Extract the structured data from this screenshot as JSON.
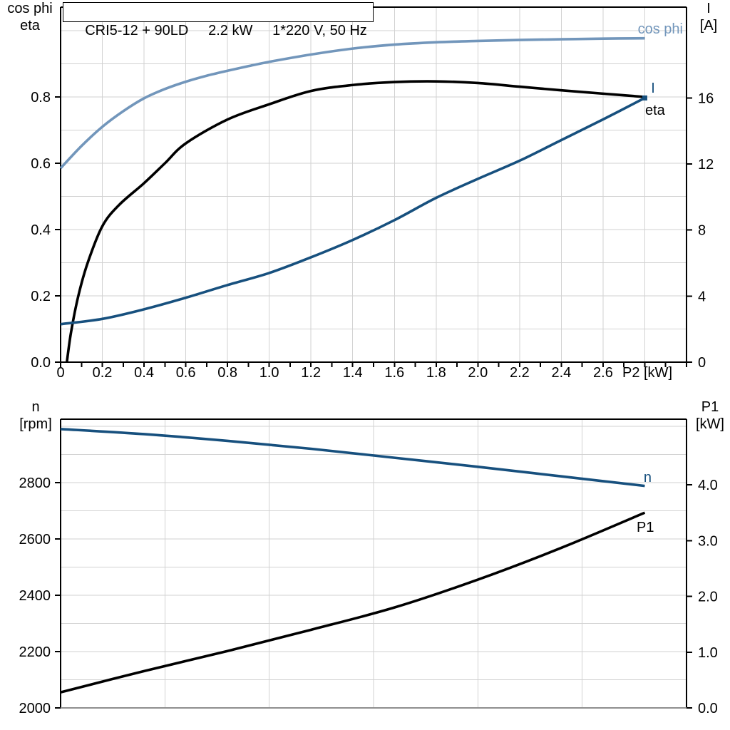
{
  "title": "CRI5-12 + 90LD     2.2 kW     1*220 V, 50 Hz",
  "colors": {
    "black": "#000000",
    "light_blue": "#7296bb",
    "dark_blue": "#17507e",
    "grid": "#d2d2d2",
    "bottom_frame_gray": "#8f8f8f",
    "background": "#ffffff"
  },
  "chart_data": [
    {
      "type": "line",
      "name": "motor-curves",
      "x_axis": {
        "title": "P2 [kW]",
        "min": 0,
        "max": 3.0,
        "minor_tick_step": 0.1,
        "tick_values": [
          0,
          0.2,
          0.4,
          0.6,
          0.8,
          1.0,
          1.2,
          1.4,
          1.6,
          1.8,
          2.0,
          2.2,
          2.4,
          2.6
        ],
        "tick_labels": [
          "0",
          "0.2",
          "0.4",
          "0.6",
          "0.8",
          "1.0",
          "1.2",
          "1.4",
          "1.6",
          "1.8",
          "2.0",
          "2.2",
          "2.4",
          "2.6"
        ],
        "grid_values": [
          0.2,
          0.4,
          0.6,
          0.8,
          1.0,
          1.2,
          1.4,
          1.6,
          1.8,
          2.0,
          2.2,
          2.4,
          2.6,
          2.8
        ]
      },
      "left_axis": {
        "title_lines": [
          "cos phi",
          "eta"
        ],
        "min": 0,
        "max": 1.071,
        "tick_values": [
          0,
          0.2,
          0.4,
          0.6,
          0.8
        ],
        "tick_labels": [
          "0.0",
          "0.2",
          "0.4",
          "0.6",
          "0.8"
        ],
        "grid_values": [
          0.1,
          0.2,
          0.3,
          0.4,
          0.5,
          0.6,
          0.7,
          0.8,
          0.9,
          1.0
        ]
      },
      "right_axis": {
        "title_lines": [
          "I",
          "[A]"
        ],
        "min": 0,
        "max": 21.5,
        "tick_values": [
          0,
          4,
          8,
          12,
          16
        ],
        "tick_labels": [
          "0",
          "4",
          "8",
          "12",
          "16"
        ]
      },
      "series": [
        {
          "name": "cos phi",
          "axis": "left",
          "color_key": "light_blue",
          "points": [
            [
              0,
              0.585
            ],
            [
              0.1,
              0.652
            ],
            [
              0.2,
              0.71
            ],
            [
              0.3,
              0.757
            ],
            [
              0.4,
              0.796
            ],
            [
              0.5,
              0.824
            ],
            [
              0.6,
              0.846
            ],
            [
              0.7,
              0.864
            ],
            [
              0.8,
              0.879
            ],
            [
              0.9,
              0.893
            ],
            [
              1.0,
              0.906
            ],
            [
              1.2,
              0.928
            ],
            [
              1.4,
              0.946
            ],
            [
              1.6,
              0.958
            ],
            [
              1.8,
              0.965
            ],
            [
              2.0,
              0.969
            ],
            [
              2.2,
              0.972
            ],
            [
              2.4,
              0.974
            ],
            [
              2.6,
              0.976
            ],
            [
              2.8,
              0.977
            ]
          ]
        },
        {
          "name": "eta",
          "axis": "left",
          "color_key": "black",
          "points": [
            [
              0.03,
              0
            ],
            [
              0.05,
              0.09
            ],
            [
              0.085,
              0.2
            ],
            [
              0.13,
              0.3
            ],
            [
              0.2,
              0.41
            ],
            [
              0.28,
              0.474
            ],
            [
              0.4,
              0.54
            ],
            [
              0.5,
              0.6
            ],
            [
              0.6,
              0.66
            ],
            [
              0.8,
              0.732
            ],
            [
              1.0,
              0.778
            ],
            [
              1.2,
              0.818
            ],
            [
              1.4,
              0.836
            ],
            [
              1.6,
              0.845
            ],
            [
              1.8,
              0.847
            ],
            [
              2.0,
              0.842
            ],
            [
              2.2,
              0.831
            ],
            [
              2.4,
              0.82
            ],
            [
              2.6,
              0.81
            ],
            [
              2.8,
              0.8
            ]
          ]
        },
        {
          "name": "I",
          "axis": "right",
          "color_key": "dark_blue",
          "end_marker": true,
          "points": [
            [
              0,
              2.3
            ],
            [
              0.2,
              2.62
            ],
            [
              0.4,
              3.2
            ],
            [
              0.6,
              3.9
            ],
            [
              0.8,
              4.67
            ],
            [
              1.0,
              5.4
            ],
            [
              1.2,
              6.35
            ],
            [
              1.4,
              7.4
            ],
            [
              1.6,
              8.6
            ],
            [
              1.8,
              9.95
            ],
            [
              2.0,
              11.1
            ],
            [
              2.2,
              12.2
            ],
            [
              2.4,
              13.45
            ],
            [
              2.6,
              14.7
            ],
            [
              2.8,
              16.0
            ]
          ]
        }
      ]
    },
    {
      "type": "line",
      "name": "speed-power-curves",
      "x_axis": {
        "title": "",
        "min": 0,
        "max": 3.0,
        "tick_values": [],
        "tick_labels": [],
        "grid_values": [
          0.5,
          1.0,
          1.5,
          2.0,
          2.5
        ]
      },
      "left_axis": {
        "title_lines": [
          "n",
          "[rpm]"
        ],
        "min": 2000,
        "max": 3025,
        "tick_values": [
          2000,
          2200,
          2400,
          2600,
          2800
        ],
        "tick_labels": [
          "2000",
          "2200",
          "2400",
          "2600",
          "2800"
        ],
        "grid_values": [
          2100,
          2200,
          2300,
          2400,
          2500,
          2600,
          2700,
          2800,
          2900,
          3000
        ]
      },
      "right_axis": {
        "title_lines": [
          "P1",
          "[kW]"
        ],
        "min": 0,
        "max": 5.176,
        "tick_values": [
          0,
          1,
          2,
          3,
          4
        ],
        "tick_labels": [
          "0.0",
          "1.0",
          "2.0",
          "3.0",
          "4.0"
        ]
      },
      "series": [
        {
          "name": "n",
          "axis": "left",
          "color_key": "dark_blue",
          "points": [
            [
              0,
              2990
            ],
            [
              0.4,
              2972
            ],
            [
              0.8,
              2948
            ],
            [
              1.2,
              2920
            ],
            [
              1.6,
              2888
            ],
            [
              2.0,
              2856
            ],
            [
              2.4,
              2822
            ],
            [
              2.8,
              2788
            ]
          ]
        },
        {
          "name": "P1",
          "axis": "right",
          "color_key": "black",
          "points": [
            [
              0,
              0.28
            ],
            [
              0.4,
              0.66
            ],
            [
              0.8,
              1.02
            ],
            [
              1.2,
              1.4
            ],
            [
              1.6,
              1.8
            ],
            [
              2.0,
              2.3
            ],
            [
              2.4,
              2.87
            ],
            [
              2.8,
              3.5
            ]
          ]
        }
      ]
    }
  ]
}
